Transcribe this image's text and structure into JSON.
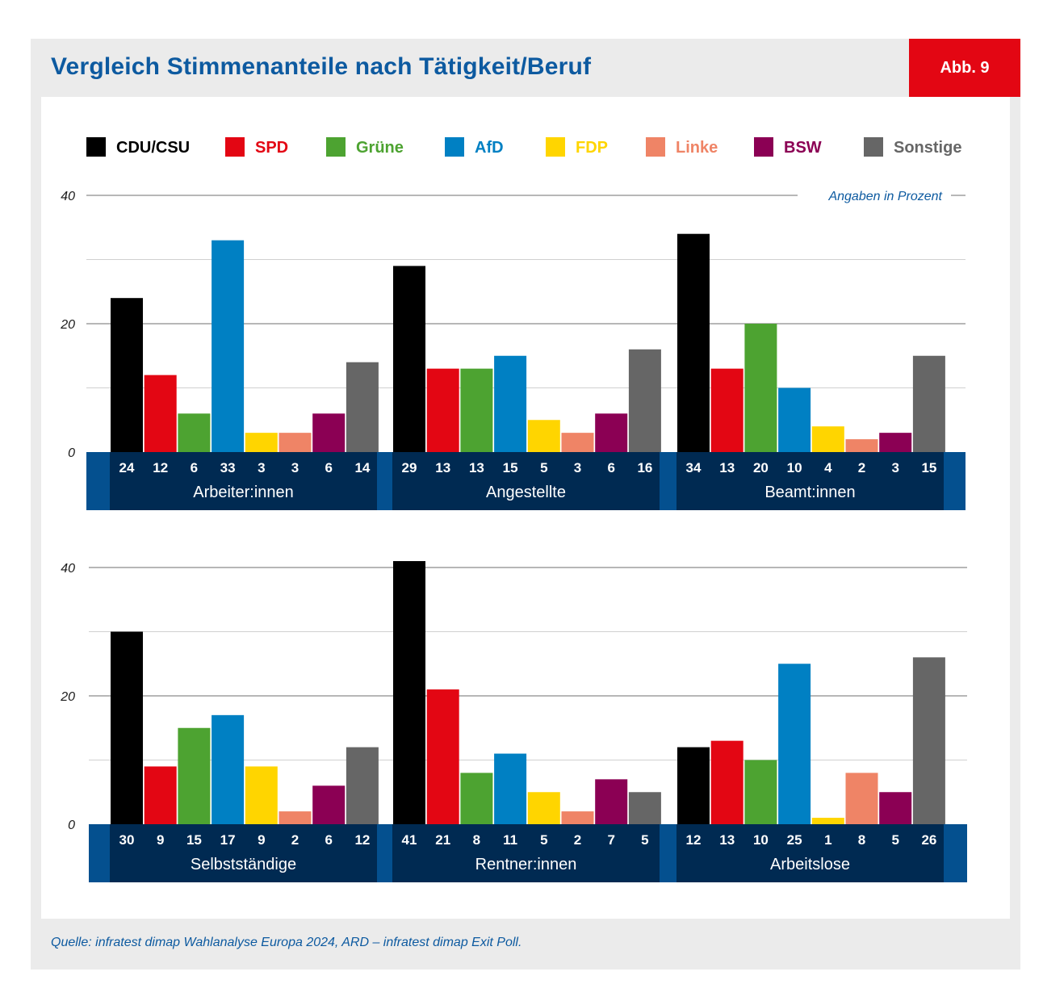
{
  "header": {
    "title": "Vergleich Stimmenanteile nach Tätigkeit/Beruf",
    "badge": "Abb. 9"
  },
  "footer": {
    "source": "Quelle: infratest dimap Wahlanalyse Europa 2024, ARD – infratest dimap Exit Poll."
  },
  "colors": {
    "title_blue": "#0d5aa0",
    "badge_red": "#e30613",
    "band_dark": "#002a52",
    "band_mid": "#04508f"
  },
  "chart_data": {
    "type": "bar",
    "note": "Angaben in Prozent",
    "ylim": [
      0,
      40
    ],
    "yticks": [
      0,
      20,
      40
    ],
    "grid": true,
    "legend_position": "top",
    "series": [
      {
        "name": "CDU/CSU",
        "color": "#000000"
      },
      {
        "name": "SPD",
        "color": "#e30613"
      },
      {
        "name": "Grüne",
        "color": "#4da331"
      },
      {
        "name": "AfD",
        "color": "#0080c3"
      },
      {
        "name": "FDP",
        "color": "#ffd500"
      },
      {
        "name": "Linke",
        "color": "#ef8466"
      },
      {
        "name": "BSW",
        "color": "#8b0054"
      },
      {
        "name": "Sonstige",
        "color": "#666666"
      }
    ],
    "groups": [
      {
        "label": "Arbeiter:innen",
        "values": [
          24,
          12,
          6,
          33,
          3,
          3,
          6,
          14
        ]
      },
      {
        "label": "Angestellte",
        "values": [
          29,
          13,
          13,
          15,
          5,
          3,
          6,
          16
        ]
      },
      {
        "label": "Beamt:innen",
        "values": [
          34,
          13,
          20,
          10,
          4,
          2,
          3,
          15
        ]
      },
      {
        "label": "Selbstständige",
        "values": [
          30,
          9,
          15,
          17,
          9,
          2,
          6,
          12
        ]
      },
      {
        "label": "Rentner:innen",
        "values": [
          41,
          21,
          8,
          11,
          5,
          2,
          7,
          5
        ]
      },
      {
        "label": "Arbeitslose",
        "values": [
          12,
          13,
          10,
          25,
          1,
          8,
          5,
          26
        ]
      }
    ]
  }
}
